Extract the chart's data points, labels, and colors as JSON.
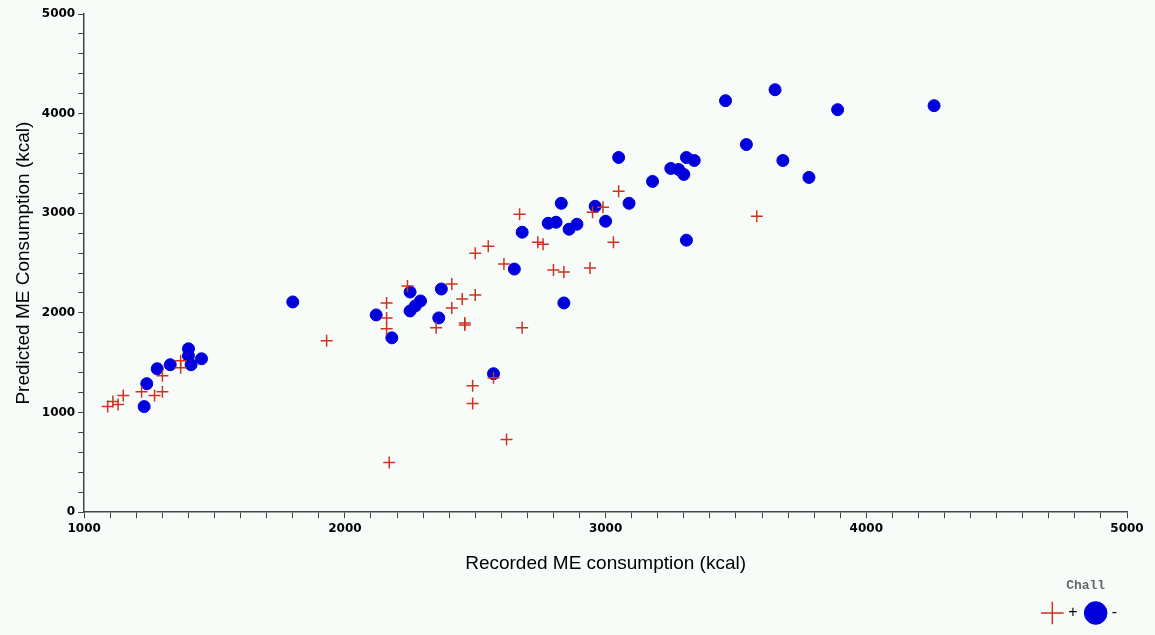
{
  "chart_data": {
    "type": "scatter",
    "xlabel": "Recorded ME consumption (kcal)",
    "ylabel": "Predicted ME Consumption (kcal)",
    "legend_title": "Chall",
    "legend": "bottom right",
    "grid": false,
    "xlim": [
      1000,
      5000
    ],
    "ylim": [
      0,
      5000
    ],
    "xticks": [
      1000,
      {
        "value": 1100,
        "label": null
      },
      {
        "value": 1200,
        "label": null
      },
      {
        "value": 1300,
        "label": null
      },
      {
        "value": 1400,
        "label": null
      },
      {
        "value": 1500,
        "label": null
      },
      {
        "value": 1600,
        "label": null
      },
      {
        "value": 1700,
        "label": null
      },
      {
        "value": 1800,
        "label": null
      },
      {
        "value": 1900,
        "label": null
      },
      2000,
      {
        "value": 2100,
        "label": null
      },
      {
        "value": 2200,
        "label": null
      },
      {
        "value": 2300,
        "label": null
      },
      {
        "value": 2400,
        "label": null
      },
      {
        "value": 2500,
        "label": null
      },
      {
        "value": 2600,
        "label": null
      },
      {
        "value": 2700,
        "label": null
      },
      {
        "value": 2800,
        "label": null
      },
      {
        "value": 2900,
        "label": null
      },
      3000,
      {
        "value": 3100,
        "label": null
      },
      {
        "value": 3200,
        "label": null
      },
      {
        "value": 3300,
        "label": null
      },
      {
        "value": 3400,
        "label": null
      },
      {
        "value": 3500,
        "label": null
      },
      {
        "value": 3600,
        "label": null
      },
      {
        "value": 3700,
        "label": null
      },
      {
        "value": 3800,
        "label": null
      },
      {
        "value": 3900,
        "label": null
      },
      4000,
      {
        "value": 4100,
        "label": null
      },
      {
        "value": 4200,
        "label": null
      },
      {
        "value": 4300,
        "label": null
      },
      {
        "value": 4400,
        "label": null
      },
      {
        "value": 4500,
        "label": null
      },
      {
        "value": 4600,
        "label": null
      },
      {
        "value": 4700,
        "label": null
      },
      {
        "value": 4800,
        "label": null
      },
      {
        "value": 4900,
        "label": null
      },
      5000
    ],
    "yticks": [
      0,
      {
        "value": 200,
        "label": null
      },
      {
        "value": 400,
        "label": null
      },
      {
        "value": 600,
        "label": null
      },
      {
        "value": 800,
        "label": null
      },
      1000,
      {
        "value": 1200,
        "label": null
      },
      {
        "value": 1400,
        "label": null
      },
      {
        "value": 1600,
        "label": null
      },
      {
        "value": 1800,
        "label": null
      },
      2000,
      {
        "value": 2200,
        "label": null
      },
      {
        "value": 2400,
        "label": null
      },
      {
        "value": 2600,
        "label": null
      },
      {
        "value": 2800,
        "label": null
      },
      3000,
      {
        "value": 3200,
        "label": null
      },
      {
        "value": 3400,
        "label": null
      },
      {
        "value": 3600,
        "label": null
      },
      {
        "value": 3800,
        "label": null
      },
      4000,
      {
        "value": 4200,
        "label": null
      },
      {
        "value": 4400,
        "label": null
      },
      {
        "value": 4600,
        "label": null
      },
      {
        "value": 4800,
        "label": null
      },
      5000
    ],
    "series": [
      {
        "name": "+",
        "color": "#cc3322",
        "marker": "cross",
        "x": [
          1090,
          1110,
          1130,
          1150,
          1220,
          1270,
          1300,
          1300,
          1370,
          1370,
          1930,
          2160,
          2160,
          2160,
          2240,
          2350,
          2410,
          2410,
          2450,
          2460,
          2460,
          2500,
          2500,
          2550,
          2610,
          2670,
          2680,
          2490,
          2490,
          2620,
          2170,
          2570,
          2740,
          2760,
          2800,
          2840,
          2940,
          2990,
          3030,
          3050,
          2950,
          3580
        ],
        "values": [
          1060,
          1110,
          1080,
          1170,
          1210,
          1170,
          1210,
          1370,
          1520,
          1450,
          1720,
          2100,
          1950,
          1840,
          2270,
          1850,
          2290,
          2050,
          2140,
          1900,
          1880,
          2180,
          2600,
          2670,
          2490,
          2990,
          1850,
          1270,
          1090,
          730,
          500,
          1350,
          2710,
          2690,
          2430,
          2410,
          2450,
          3060,
          2710,
          3220,
          3010,
          2970
        ]
      },
      {
        "name": "-",
        "color": "#0000dd",
        "marker": "circle",
        "x": [
          1230,
          1240,
          1280,
          1330,
          1400,
          1400,
          1410,
          1450,
          1800,
          2120,
          2180,
          2250,
          2250,
          2270,
          2290,
          2370,
          2360,
          2570,
          2650,
          2680,
          2780,
          2810,
          2860,
          2890,
          2830,
          2960,
          3000,
          3090,
          3050,
          3180,
          3250,
          3280,
          3310,
          3340,
          3300,
          3310,
          2840,
          3460,
          3540,
          3650,
          3680,
          3780,
          3890,
          4260
        ],
        "values": [
          1060,
          1290,
          1440,
          1480,
          1640,
          1570,
          1480,
          1540,
          2110,
          1980,
          1750,
          2210,
          2020,
          2070,
          2120,
          2240,
          1950,
          1390,
          2440,
          2810,
          2900,
          2910,
          2840,
          2890,
          3100,
          3070,
          2920,
          3100,
          3560,
          3320,
          3450,
          3440,
          3560,
          3530,
          3390,
          2730,
          2100,
          4130,
          3690,
          4240,
          3530,
          3360,
          4040,
          4080
        ]
      }
    ]
  }
}
